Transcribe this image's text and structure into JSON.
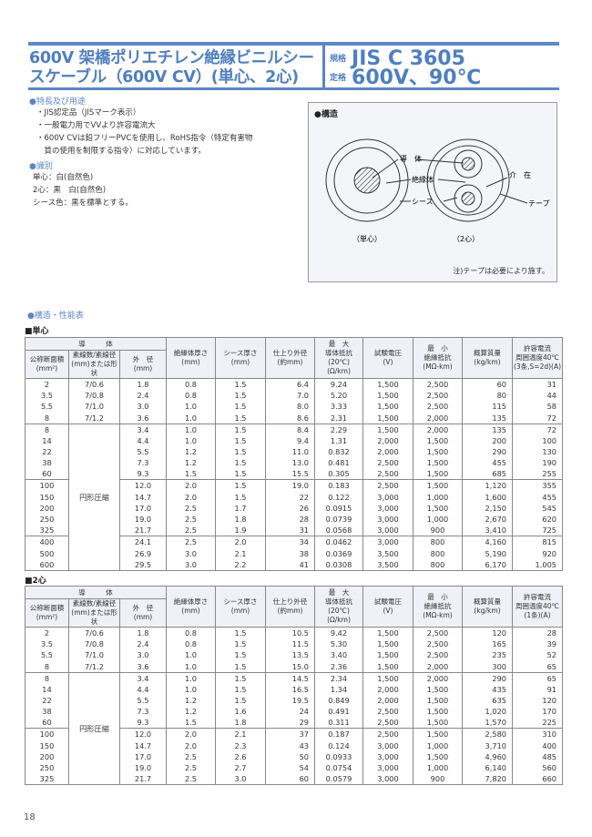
{
  "header": {
    "title_line1": "600V 架橋ポリエチレン絶縁ビニルシー",
    "title_line2": "スケーブル（600V CV）(単心、2心)",
    "standard_label": "規格",
    "standard_value": "JIS C 3605",
    "rating_label": "定格",
    "rating_value": "600V、90℃"
  },
  "features": {
    "heading": "●特長及び用途",
    "items": [
      "・JIS認定品（JISマーク表示）",
      "・一般電力用でVVより許容電流大",
      "・600V CVは鉛フリーPVCを使用し、RoHS指令（特定有害物",
      "　質の使用を制限する指令）に対応しています。"
    ]
  },
  "identification": {
    "heading": "●識別",
    "items": [
      "単心：白(自然色)",
      "2心：黒　白(自然色)",
      "シース色：黒を標準とする。"
    ]
  },
  "structure": {
    "heading": "●構造",
    "conductor": "導　体",
    "insulation": "絶縁体",
    "sheath": "シース",
    "filler": "介　在",
    "tape": "テープ",
    "single_caption": "（単心）",
    "two_caption": "（2心）",
    "note": "注)テープは必要により施す。"
  },
  "performance_heading": "●構造・性能表",
  "colors": {
    "accent": "#4f7fc0"
  },
  "tables": [
    {
      "label": "■単心",
      "group_header": "導　　　体",
      "headers": [
        [
          "公称断面積",
          "(mm²)"
        ],
        [
          "素線数/素線径",
          "(mm)または形状"
        ],
        [
          "外　径",
          "(mm)"
        ],
        [
          "絶縁体厚さ",
          "(mm)"
        ],
        [
          "シース厚さ",
          "(mm)"
        ],
        [
          "仕上り外径",
          "(約mm)"
        ],
        [
          "最　大",
          "導体抵抗(20℃)",
          "(Ω/km)"
        ],
        [
          "試験電圧",
          "(V)"
        ],
        [
          "最　小",
          "絶縁抵抗",
          "(MΩ-km)"
        ],
        [
          "概算質量",
          "(kg/km)"
        ],
        [
          "許容電流",
          "周囲温度40℃",
          "(3条,S=2d)(A)"
        ]
      ],
      "compressed_label": "円形圧縮",
      "groups": [
        [
          [
            "2",
            "7/0.6",
            "1.8",
            "0.8",
            "1.5",
            "6.4",
            "9.24",
            "1,500",
            "2,500",
            "60",
            "31"
          ],
          [
            "3.5",
            "7/0.8",
            "2.4",
            "0.8",
            "1.5",
            "7.0",
            "5.20",
            "1,500",
            "2,500",
            "80",
            "44"
          ],
          [
            "5.5",
            "7/1.0",
            "3.0",
            "1.0",
            "1.5",
            "8.0",
            "3.33",
            "1,500",
            "2,500",
            "115",
            "58"
          ],
          [
            "8",
            "7/1.2",
            "3.6",
            "1.0",
            "1.5",
            "8.6",
            "2.31",
            "1,500",
            "2,000",
            "135",
            "72"
          ]
        ],
        [
          [
            "8",
            "",
            "3.4",
            "1.0",
            "1.5",
            "8.4",
            "2.29",
            "1,500",
            "2,000",
            "135",
            "72"
          ],
          [
            "14",
            "",
            "4.4",
            "1.0",
            "1.5",
            "9.4",
            "1.31",
            "2,000",
            "1,500",
            "200",
            "100"
          ],
          [
            "22",
            "",
            "5.5",
            "1.2",
            "1.5",
            "11.0",
            "0.832",
            "2,000",
            "1,500",
            "290",
            "130"
          ],
          [
            "38",
            "",
            "7.3",
            "1.2",
            "1.5",
            "13.0",
            "0.481",
            "2,500",
            "1,500",
            "455",
            "190"
          ],
          [
            "60",
            "",
            "9.3",
            "1.5",
            "1.5",
            "15.5",
            "0.305",
            "2,500",
            "1,500",
            "685",
            "255"
          ]
        ],
        [
          [
            "100",
            "",
            "12.0",
            "2.0",
            "1.5",
            "19.0",
            "0.183",
            "2,500",
            "1,500",
            "1,120",
            "355"
          ],
          [
            "150",
            "",
            "14.7",
            "2.0",
            "1.5",
            "22",
            "0.122",
            "3,000",
            "1,000",
            "1,600",
            "455"
          ],
          [
            "200",
            "",
            "17.0",
            "2.5",
            "1.7",
            "26",
            "0.0915",
            "3,000",
            "1,500",
            "2,150",
            "545"
          ],
          [
            "250",
            "",
            "19.0",
            "2.5",
            "1.8",
            "28",
            "0.0739",
            "3,000",
            "1,000",
            "2,670",
            "620"
          ],
          [
            "325",
            "",
            "21.7",
            "2.5",
            "1.9",
            "31",
            "0.0568",
            "3,000",
            "900",
            "3,410",
            "725"
          ]
        ],
        [
          [
            "400",
            "",
            "24.1",
            "2.5",
            "2.0",
            "34",
            "0.0462",
            "3,000",
            "800",
            "4,160",
            "815"
          ],
          [
            "500",
            "",
            "26.9",
            "3.0",
            "2.1",
            "38",
            "0.0369",
            "3,500",
            "800",
            "5,190",
            "920"
          ],
          [
            "600",
            "",
            "29.5",
            "3.0",
            "2.2",
            "41",
            "0.0308",
            "3,500",
            "800",
            "6,170",
            "1,005"
          ]
        ]
      ]
    },
    {
      "label": "■2心",
      "group_header": "導　　　体",
      "headers": [
        [
          "公称断面積",
          "(mm²)"
        ],
        [
          "素線数/素線径",
          "(mm)または形状"
        ],
        [
          "外　径",
          "(mm)"
        ],
        [
          "絶縁体厚さ",
          "(mm)"
        ],
        [
          "シース厚さ",
          "(mm)"
        ],
        [
          "仕上り外径",
          "(約mm)"
        ],
        [
          "最　大",
          "導体抵抗(20℃)",
          "(Ω/km)"
        ],
        [
          "試験電圧",
          "(V)"
        ],
        [
          "最　小",
          "絶縁抵抗",
          "(MΩ-km)"
        ],
        [
          "概算質量",
          "(kg/km)"
        ],
        [
          "許容電流",
          "周囲温度40℃",
          "(1条)(A)"
        ]
      ],
      "compressed_label": "円形圧縮",
      "groups": [
        [
          [
            "2",
            "7/0.6",
            "1.8",
            "0.8",
            "1.5",
            "10.5",
            "9.42",
            "1,500",
            "2,500",
            "120",
            "28"
          ],
          [
            "3.5",
            "7/0.8",
            "2.4",
            "0.8",
            "1.5",
            "11.5",
            "5.30",
            "1,500",
            "2,500",
            "165",
            "39"
          ],
          [
            "5.5",
            "7/1.0",
            "3.0",
            "1.0",
            "1.5",
            "13.5",
            "3.40",
            "1,500",
            "2,500",
            "235",
            "52"
          ],
          [
            "8",
            "7/1.2",
            "3.6",
            "1.0",
            "1.5",
            "15.0",
            "2.36",
            "1,500",
            "2,000",
            "300",
            "65"
          ]
        ],
        [
          [
            "8",
            "",
            "3.4",
            "1.0",
            "1.5",
            "14.5",
            "2.34",
            "1,500",
            "2,000",
            "290",
            "65"
          ],
          [
            "14",
            "",
            "4.4",
            "1.0",
            "1.5",
            "16.5",
            "1.34",
            "2,000",
            "1,500",
            "435",
            "91"
          ],
          [
            "22",
            "",
            "5.5",
            "1.2",
            "1.5",
            "19.5",
            "0.849",
            "2,000",
            "1,500",
            "635",
            "120"
          ],
          [
            "38",
            "",
            "7.3",
            "1.2",
            "1.6",
            "24",
            "0.491",
            "2,500",
            "1,500",
            "1,020",
            "170"
          ],
          [
            "60",
            "",
            "9.3",
            "1.5",
            "1.8",
            "29",
            "0.311",
            "2,500",
            "1,500",
            "1,570",
            "225"
          ]
        ],
        [
          [
            "100",
            "",
            "12.0",
            "2.0",
            "2.1",
            "37",
            "0.187",
            "2,500",
            "1,500",
            "2,580",
            "310"
          ],
          [
            "150",
            "",
            "14.7",
            "2.0",
            "2.3",
            "43",
            "0.124",
            "3,000",
            "1,000",
            "3,710",
            "400"
          ],
          [
            "200",
            "",
            "17.0",
            "2.5",
            "2.6",
            "50",
            "0.0933",
            "3,000",
            "1,500",
            "4,960",
            "485"
          ],
          [
            "250",
            "",
            "19.0",
            "2.5",
            "2.7",
            "54",
            "0.0754",
            "3,000",
            "1,000",
            "6,140",
            "560"
          ],
          [
            "325",
            "",
            "21.7",
            "2.5",
            "3.0",
            "60",
            "0.0579",
            "3,000",
            "900",
            "7,820",
            "660"
          ]
        ]
      ]
    }
  ],
  "page_number": "18"
}
